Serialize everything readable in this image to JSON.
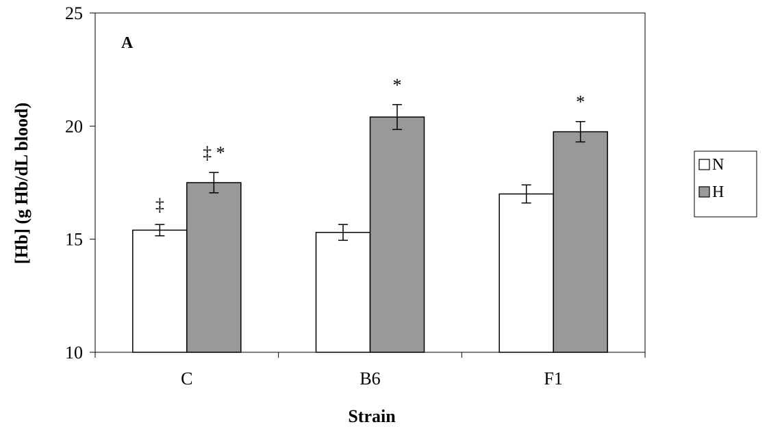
{
  "chart_data": {
    "type": "bar",
    "panel_label": "A",
    "xlabel": "Strain",
    "ylabel": "[Hb] (g Hb/dL blood)",
    "ylim": [
      10,
      25
    ],
    "yticks": [
      10,
      15,
      20,
      25
    ],
    "grid": false,
    "legend_position": "right",
    "categories": [
      "C",
      "B6",
      "F1"
    ],
    "series": [
      {
        "name": "N",
        "color": "#ffffff",
        "values": [
          15.4,
          15.3,
          17.0
        ],
        "errors": [
          0.25,
          0.35,
          0.4
        ],
        "annotations": [
          "‡",
          "",
          ""
        ]
      },
      {
        "name": "H",
        "color": "#999999",
        "values": [
          17.5,
          20.4,
          19.75
        ],
        "errors": [
          0.45,
          0.55,
          0.45
        ],
        "annotations": [
          "‡ *",
          "*",
          "*"
        ]
      }
    ]
  }
}
